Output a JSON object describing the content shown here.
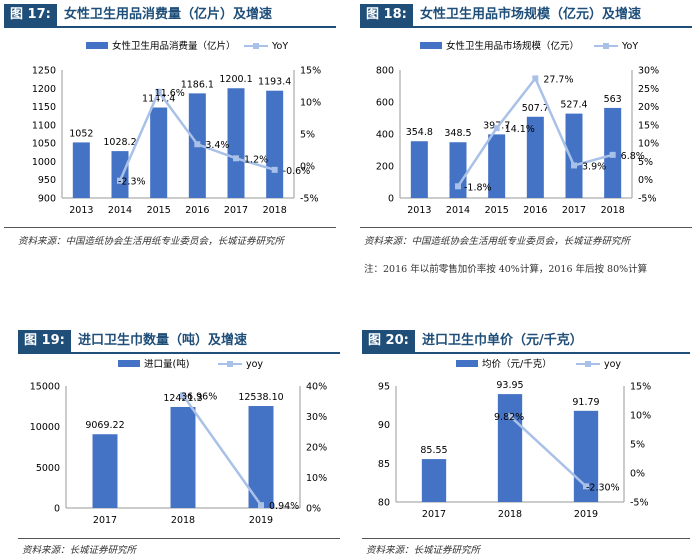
{
  "colors": {
    "bar": "#4472c4",
    "line": "#a9c1e8",
    "title_bg": "#1f4e79"
  },
  "charts": [
    {
      "label": "图 17:",
      "title": "女性卫生用品消费量（亿片）及增速",
      "source": "资料来源：中国造纸协会生活用纸专业委员会，长城证券研究所",
      "note": "",
      "chart_data": {
        "type": "bar",
        "title": "女性卫生用品消费量（亿片）及增速",
        "categories": [
          "2013",
          "2014",
          "2015",
          "2016",
          "2017",
          "2018"
        ],
        "series": [
          {
            "name": "女性卫生用品消费量（亿片）",
            "type": "bar",
            "axis": "left",
            "values": [
              1052,
              1028.2,
              1147.4,
              1186.1,
              1200.1,
              1193.4
            ],
            "labels": [
              "1052",
              "1028.2",
              "1147.4",
              "1186.1",
              "1200.1",
              "1193.4"
            ]
          },
          {
            "name": "YoY",
            "type": "line",
            "axis": "right",
            "values": [
              null,
              -2.3,
              11.6,
              3.4,
              1.2,
              -0.6
            ],
            "labels": [
              "",
              "-2.3%",
              "11.6%",
              "3.4%",
              "1.2%",
              "-0.6%"
            ]
          }
        ],
        "ylim": [
          900,
          1250
        ],
        "yticks": [
          "900",
          "950",
          "1000",
          "1050",
          "1100",
          "1150",
          "1200",
          "1250"
        ],
        "y2lim": [
          -5,
          15
        ],
        "y2ticks": [
          "-5%",
          "0%",
          "5%",
          "10%",
          "15%"
        ]
      }
    },
    {
      "label": "图 18:",
      "title": "女性卫生用品市场规模（亿元）及增速",
      "source": "资料来源：中国造纸协会生活用纸专业委员会，长城证券研究所",
      "note": "注：2016 年以前零售加价率按 40%计算，2016 年后按 80%计算",
      "chart_data": {
        "type": "bar",
        "title": "女性卫生用品市场规模（亿元）及增速",
        "categories": [
          "2013",
          "2014",
          "2015",
          "2016",
          "2017",
          "2018"
        ],
        "series": [
          {
            "name": "女性卫生用品市场规模（亿元）",
            "type": "bar",
            "axis": "left",
            "values": [
              354.8,
              348.5,
              397.7,
              507.7,
              527.4,
              563
            ],
            "labels": [
              "354.8",
              "348.5",
              "397.7",
              "507.7",
              "527.4",
              "563"
            ]
          },
          {
            "name": "YoY",
            "type": "line",
            "axis": "right",
            "values": [
              null,
              -1.8,
              14.1,
              27.7,
              3.9,
              6.8
            ],
            "labels": [
              "",
              "-1.8%",
              "14.1%",
              "27.7%",
              "3.9%",
              "6.8%"
            ]
          }
        ],
        "ylim": [
          0,
          800
        ],
        "yticks": [
          "0",
          "200",
          "400",
          "600",
          "800"
        ],
        "y2lim": [
          -5,
          30
        ],
        "y2ticks": [
          "-5%",
          "0%",
          "5%",
          "10%",
          "15%",
          "20%",
          "25%",
          "30%"
        ]
      }
    },
    {
      "label": "图 19:",
      "title": "进口卫生巾数量（吨）及增速",
      "source": "资料来源：长城证券研究所",
      "note": "",
      "chart_data": {
        "type": "bar",
        "title": "进口卫生巾数量（吨）及增速",
        "categories": [
          "2017",
          "2018",
          "2019"
        ],
        "series": [
          {
            "name": "进口量(吨)",
            "type": "bar",
            "axis": "left",
            "values": [
              9069.22,
              12421.3,
              12538.1
            ],
            "labels": [
              "9069.22",
              "12421.3",
              "12538.10"
            ]
          },
          {
            "name": "yoy",
            "type": "line",
            "axis": "right",
            "values": [
              null,
              36.96,
              0.94
            ],
            "labels": [
              "",
              "36.96%",
              "0.94%"
            ]
          }
        ],
        "ylim": [
          0,
          15000
        ],
        "yticks": [
          "0",
          "5000",
          "10000",
          "15000"
        ],
        "y2lim": [
          0,
          40
        ],
        "y2ticks": [
          "0%",
          "10%",
          "20%",
          "30%",
          "40%"
        ]
      }
    },
    {
      "label": "图 20:",
      "title": "进口卫生巾单价（元/千克）",
      "source": "资料来源：长城证券研究所",
      "note": "",
      "chart_data": {
        "type": "bar",
        "title": "进口卫生巾单价（元/千克）",
        "categories": [
          "2017",
          "2018",
          "2019"
        ],
        "series": [
          {
            "name": "均价（元/千克）",
            "type": "bar",
            "axis": "left",
            "values": [
              85.55,
              93.95,
              91.79
            ],
            "labels": [
              "85.55",
              "93.95",
              "91.79"
            ]
          },
          {
            "name": "yoy",
            "type": "line",
            "axis": "right",
            "values": [
              null,
              9.82,
              -2.3
            ],
            "labels": [
              "",
              "9.82%",
              "-2.30%"
            ]
          }
        ],
        "ylim": [
          80,
          95
        ],
        "yticks": [
          "80",
          "85",
          "90",
          "95"
        ],
        "y2lim": [
          -5,
          15
        ],
        "y2ticks": [
          "-5%",
          "0%",
          "5%",
          "10%",
          "15%"
        ]
      }
    }
  ]
}
